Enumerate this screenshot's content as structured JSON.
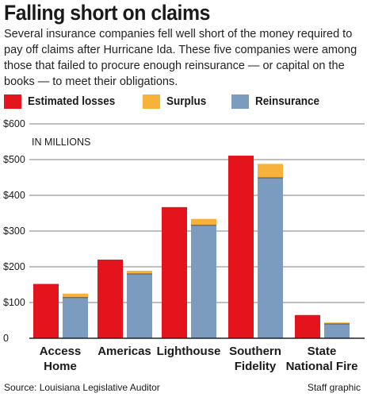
{
  "header": {
    "title": "Falling short on claims",
    "subtitle": "Several insurance companies fell well short of the money required to pay off claims after Hurricane Ida. These five companies were among those that failed to procure enough reinsurance — or capital on the books — to meet their obligations."
  },
  "legend": [
    {
      "label": "Estimated losses",
      "color": "#e3141b"
    },
    {
      "label": "Surplus",
      "color": "#f7b23b"
    },
    {
      "label": "Reinsurance",
      "color": "#7b9bbf"
    }
  ],
  "unit_label": "IN MILLIONS",
  "footer": {
    "source": "Source: Louisiana Legislative Auditor",
    "credit": "Staff graphic"
  },
  "chart_data": {
    "type": "bar",
    "categories": [
      [
        "Access",
        "Home"
      ],
      [
        "Americas"
      ],
      [
        "Lighthouse"
      ],
      [
        "Southern",
        "Fidelity"
      ],
      [
        "State",
        "National Fire"
      ]
    ],
    "series": [
      {
        "name": "Estimated losses",
        "color": "#e3141b",
        "values": [
          152,
          220,
          367,
          511,
          65
        ]
      },
      {
        "name": "Reinsurance",
        "color": "#7b9bbf",
        "values": [
          114,
          180,
          316,
          449,
          40
        ]
      },
      {
        "name": "Surplus",
        "color": "#f7b23b",
        "values": [
          11,
          9,
          18,
          39,
          4
        ]
      }
    ],
    "stacked_bar": {
      "bottom": "Reinsurance",
      "top": "Surplus"
    },
    "yticks": [
      "$600",
      "$500",
      "$400",
      "$300",
      "$200",
      "$100",
      "0"
    ],
    "ylim": [
      0,
      600
    ],
    "grid": true
  }
}
